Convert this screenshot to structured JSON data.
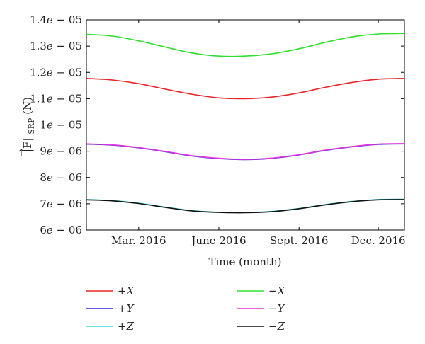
{
  "chart_data": {
    "type": "line",
    "xlabel": "Time (month)",
    "ylabel_base": "|F|",
    "ylabel_sub": "SRP",
    "ylabel_unit": " (N)",
    "xlim": [
      0,
      365
    ],
    "ylim": [
      6e-06,
      1.4e-05
    ],
    "x_ticks": [
      {
        "x": 60,
        "label": "Mar. 2016"
      },
      {
        "x": 152,
        "label": "June 2016"
      },
      {
        "x": 244,
        "label": "Sept. 2016"
      },
      {
        "x": 335,
        "label": "Dec. 2016"
      }
    ],
    "y_ticks": [
      {
        "y": 6e-06,
        "mant": "6",
        "exp": "− 06"
      },
      {
        "y": 7e-06,
        "mant": "7",
        "exp": "− 06"
      },
      {
        "y": 8e-06,
        "mant": "8",
        "exp": "− 06"
      },
      {
        "y": 9e-06,
        "mant": "9",
        "exp": "− 06"
      },
      {
        "y": 1e-05,
        "mant": "1",
        "exp": "− 05"
      },
      {
        "y": 1.1e-05,
        "mant": "1.1",
        "exp": "− 05"
      },
      {
        "y": 1.2e-05,
        "mant": "1.2",
        "exp": "− 05"
      },
      {
        "y": 1.3e-05,
        "mant": "1.3",
        "exp": "− 05"
      },
      {
        "y": 1.4e-05,
        "mant": "1.4",
        "exp": "− 05"
      }
    ],
    "x": [
      0,
      30,
      60,
      91,
      121,
      152,
      182,
      213,
      244,
      274,
      305,
      335,
      365
    ],
    "series": [
      {
        "name": "+X",
        "color": "#e8262a",
        "values": [
          1.177e-05,
          1.171e-05,
          1.157e-05,
          1.136e-05,
          1.117e-05,
          1.103e-05,
          1.1e-05,
          1.106e-05,
          1.122e-05,
          1.143e-05,
          1.162e-05,
          1.174e-05,
          1.177e-05
        ]
      },
      {
        "name": "−X",
        "color": "#2fe02f",
        "values": [
          1.345e-05,
          1.338e-05,
          1.32e-05,
          1.296e-05,
          1.274e-05,
          1.262e-05,
          1.262e-05,
          1.271e-05,
          1.29e-05,
          1.314e-05,
          1.335e-05,
          1.346e-05,
          1.348e-05
        ]
      },
      {
        "name": "+Y",
        "color": "#2b2bd6",
        "values": [
          9.27e-06,
          9.23e-06,
          9.13e-06,
          8.98e-06,
          8.82e-06,
          8.72e-06,
          8.68e-06,
          8.73e-06,
          8.86e-06,
          9.03e-06,
          9.17e-06,
          9.26e-06,
          9.28e-06
        ]
      },
      {
        "name": "−Y",
        "color": "#e233e2",
        "values": [
          9.28e-06,
          9.24e-06,
          9.14e-06,
          8.99e-06,
          8.83e-06,
          8.73e-06,
          8.69e-06,
          8.74e-06,
          8.87e-06,
          9.04e-06,
          9.18e-06,
          9.27e-06,
          9.29e-06
        ]
      },
      {
        "name": "+Z",
        "color": "#33d6d6",
        "values": [
          7.16e-06,
          7.12e-06,
          7.02e-06,
          6.87e-06,
          6.74e-06,
          6.68e-06,
          6.67e-06,
          6.71e-06,
          6.82e-06,
          6.97e-06,
          7.09e-06,
          7.16e-06,
          7.17e-06
        ]
      },
      {
        "name": "−Z",
        "color": "#111111",
        "values": [
          7.15e-06,
          7.11e-06,
          7.01e-06,
          6.86e-06,
          6.73e-06,
          6.67e-06,
          6.66e-06,
          6.7e-06,
          6.81e-06,
          6.96e-06,
          7.08e-06,
          7.15e-06,
          7.16e-06
        ]
      }
    ],
    "legend_position": "below",
    "grid": false
  }
}
